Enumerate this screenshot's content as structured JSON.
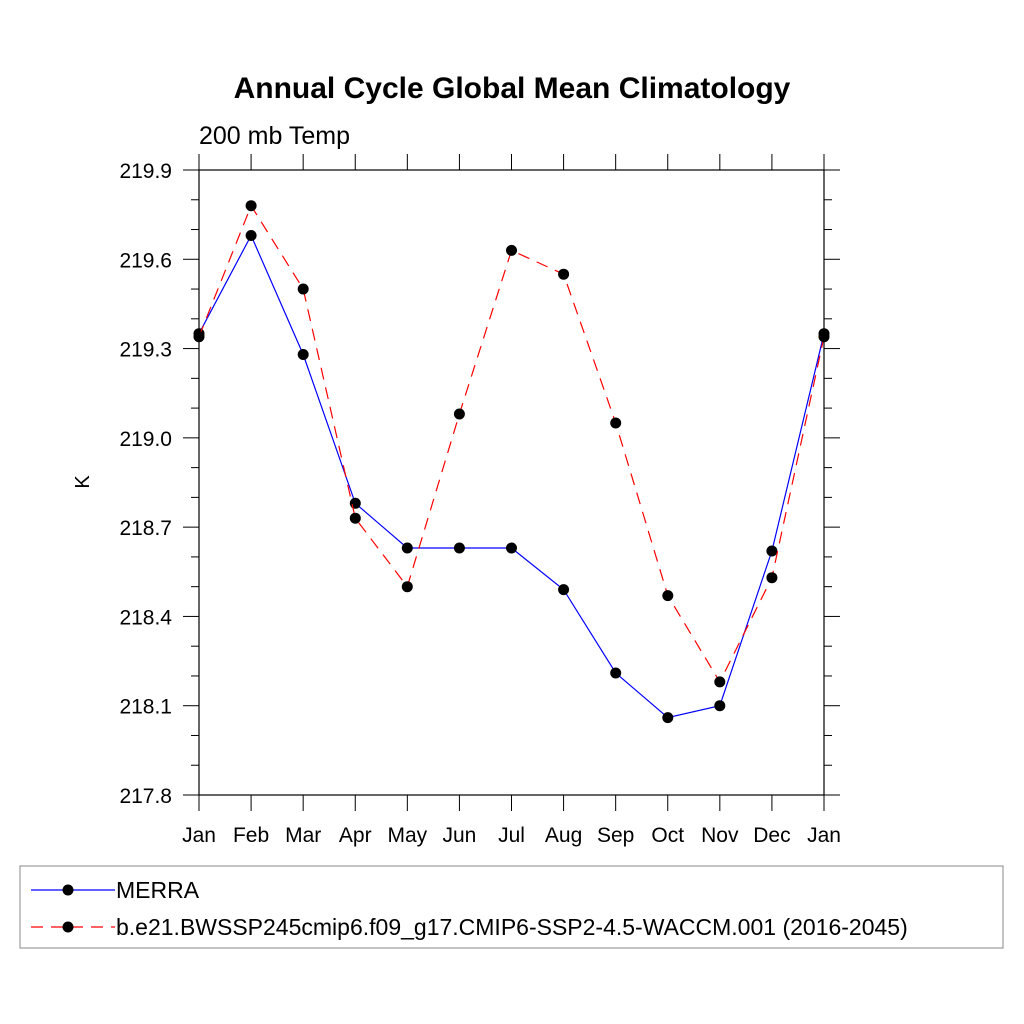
{
  "chart_data": {
    "type": "line",
    "title": "Annual Cycle Global Mean Climatology",
    "subtitle": "200 mb Temp",
    "ylabel": "K",
    "xlabel": "",
    "ylim": [
      217.8,
      219.9
    ],
    "yticks": [
      "217.8",
      "218.1",
      "218.4",
      "218.7",
      "219.0",
      "219.3",
      "219.6",
      "219.9"
    ],
    "categories": [
      "Jan",
      "Feb",
      "Mar",
      "Apr",
      "May",
      "Jun",
      "Jul",
      "Aug",
      "Sep",
      "Oct",
      "Nov",
      "Dec",
      "Jan"
    ],
    "series": [
      {
        "name": "MERRA",
        "color": "#0000ff",
        "dash": "solid",
        "values": [
          219.35,
          219.68,
          219.28,
          218.78,
          218.63,
          218.63,
          218.63,
          218.49,
          218.21,
          218.06,
          218.1,
          218.62,
          219.35
        ]
      },
      {
        "name": "b.e21.BWSSP245cmip6.f09_g17.CMIP6-SSP2-4.5-WACCM.001 (2016-2045)",
        "color": "#ff0000",
        "dash": "dashed",
        "values": [
          219.34,
          219.78,
          219.5,
          218.73,
          218.5,
          219.08,
          219.63,
          219.55,
          219.05,
          218.47,
          218.18,
          218.53,
          219.34
        ]
      }
    ],
    "grid": false,
    "legend_position": "bottom"
  }
}
